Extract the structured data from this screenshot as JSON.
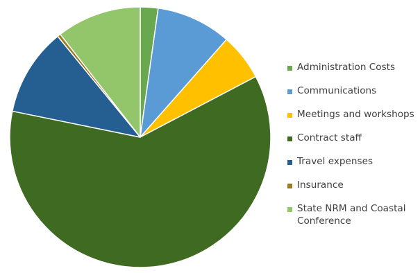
{
  "chart_data": {
    "type": "pie",
    "title": "",
    "legend_position": "right",
    "slices": [
      {
        "label": "Administration Costs",
        "value": 2.2,
        "color": "#6aa84f"
      },
      {
        "label": "Communications",
        "value": 9.3,
        "color": "#5b9bd5"
      },
      {
        "label": "Meetings and workshops",
        "value": 5.8,
        "color": "#ffc000"
      },
      {
        "label": "Contract staff",
        "value": 60.9,
        "color": "#3e6b21"
      },
      {
        "label": "Travel expenses",
        "value": 10.9,
        "color": "#255e91"
      },
      {
        "label": "Insurance",
        "value": 0.4,
        "color": "#9c7a1f"
      },
      {
        "label": "State NRM and Coastal Conference",
        "value": 10.5,
        "color": "#93c56b"
      }
    ]
  }
}
